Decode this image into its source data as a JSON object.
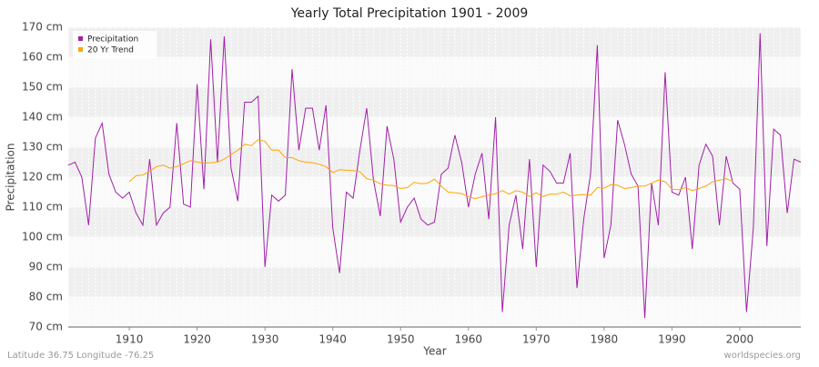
{
  "chart_data": {
    "type": "line",
    "title": "Yearly Total Precipitation 1901 - 2009",
    "x_label": "Year",
    "y_label": "Precipitation",
    "footer_left": "Latitude 36.75 Longitude -76.25",
    "footer_right": "worldspecies.org",
    "legend": "top-left",
    "grid": true,
    "x": [
      1901,
      1902,
      1903,
      1904,
      1905,
      1906,
      1907,
      1908,
      1909,
      1910,
      1911,
      1912,
      1913,
      1914,
      1915,
      1916,
      1917,
      1918,
      1919,
      1920,
      1921,
      1922,
      1923,
      1924,
      1925,
      1926,
      1927,
      1928,
      1929,
      1930,
      1931,
      1932,
      1933,
      1934,
      1935,
      1936,
      1937,
      1938,
      1939,
      1940,
      1941,
      1942,
      1943,
      1944,
      1945,
      1946,
      1947,
      1948,
      1949,
      1950,
      1951,
      1952,
      1953,
      1954,
      1955,
      1956,
      1957,
      1958,
      1959,
      1960,
      1961,
      1962,
      1963,
      1964,
      1965,
      1966,
      1967,
      1968,
      1969,
      1970,
      1971,
      1972,
      1973,
      1974,
      1975,
      1976,
      1977,
      1978,
      1979,
      1980,
      1981,
      1982,
      1983,
      1984,
      1985,
      1986,
      1987,
      1988,
      1989,
      1990,
      1991,
      1992,
      1993,
      1994,
      1995,
      1996,
      1997,
      1998,
      1999,
      2000,
      2001,
      2002,
      2003,
      2004,
      2005,
      2006,
      2007,
      2008,
      2009
    ],
    "series": [
      {
        "name": "Precipitation",
        "color": "#a020a8",
        "values": [
          124,
          125,
          120,
          104,
          133,
          138,
          121,
          115,
          113,
          115,
          108,
          104,
          126,
          104,
          108,
          110,
          138,
          111,
          110,
          151,
          116,
          166,
          125,
          167,
          123,
          112,
          145,
          145,
          147,
          90,
          114,
          112,
          114,
          156,
          129,
          143,
          143,
          129,
          144,
          103,
          88,
          115,
          113,
          129,
          143,
          119,
          107,
          137,
          126,
          105,
          110,
          113,
          106,
          104,
          105,
          121,
          123,
          134,
          125,
          110,
          121,
          128,
          106,
          140,
          75,
          104,
          114,
          96,
          126,
          90,
          124,
          122,
          118,
          118,
          128,
          83,
          106,
          121,
          164,
          93,
          104,
          139,
          131,
          121,
          117,
          73,
          118,
          104,
          155,
          115,
          114,
          120,
          96,
          124,
          131,
          127,
          104,
          127,
          118,
          116,
          75,
          103,
          168,
          97,
          136,
          134,
          108,
          126,
          125
        ]
      },
      {
        "name": "20 Yr Trend",
        "color": "#ffa500",
        "values": [
          null,
          null,
          null,
          null,
          null,
          null,
          null,
          null,
          null,
          118.5,
          120.5,
          120.7,
          122,
          123.5,
          124,
          123,
          123.5,
          124.5,
          125.5,
          125,
          124.7,
          124.8,
          125,
          126,
          127.5,
          129,
          131,
          130.5,
          132.5,
          132,
          129,
          129,
          126.5,
          126.5,
          125.5,
          125,
          124.8,
          124.3,
          123.5,
          121.5,
          122.5,
          122.3,
          122.2,
          121.8,
          119.5,
          119,
          117.8,
          117.3,
          117.2,
          116.2,
          116.5,
          118.3,
          117.8,
          118,
          119.3,
          117,
          115,
          114.8,
          114.5,
          113.5,
          112.8,
          113.5,
          114,
          114.5,
          115.5,
          114.3,
          115.5,
          115,
          113.5,
          114.8,
          113.5,
          114.3,
          114.3,
          115,
          113.8,
          114,
          114.2,
          114,
          116.5,
          116.3,
          117.5,
          117.3,
          116.2,
          116.5,
          117,
          117,
          118,
          119,
          118.5,
          116,
          115.8,
          116.5,
          115.5,
          116.2,
          117,
          118.5,
          119,
          119.5,
          118.5,
          null,
          null,
          null,
          null,
          null,
          null,
          null,
          null,
          null,
          null
        ]
      }
    ],
    "xlim": [
      1901,
      2009
    ],
    "xticks": [
      1910,
      1920,
      1930,
      1940,
      1950,
      1960,
      1970,
      1980,
      1990,
      2000
    ],
    "ylim": [
      70,
      170
    ],
    "yticks": [
      {
        "value": 70,
        "label": "70 cm"
      },
      {
        "value": 80,
        "label": "80 cm"
      },
      {
        "value": 90,
        "label": "90 cm"
      },
      {
        "value": 100,
        "label": "100 cm"
      },
      {
        "value": 110,
        "label": "110 cm"
      },
      {
        "value": 120,
        "label": "120 cm"
      },
      {
        "value": 130,
        "label": "130 cm"
      },
      {
        "value": 140,
        "label": "140 cm"
      },
      {
        "value": 150,
        "label": "150 cm"
      },
      {
        "value": 160,
        "label": "160 cm"
      },
      {
        "value": 170,
        "label": "170 cm"
      }
    ]
  }
}
